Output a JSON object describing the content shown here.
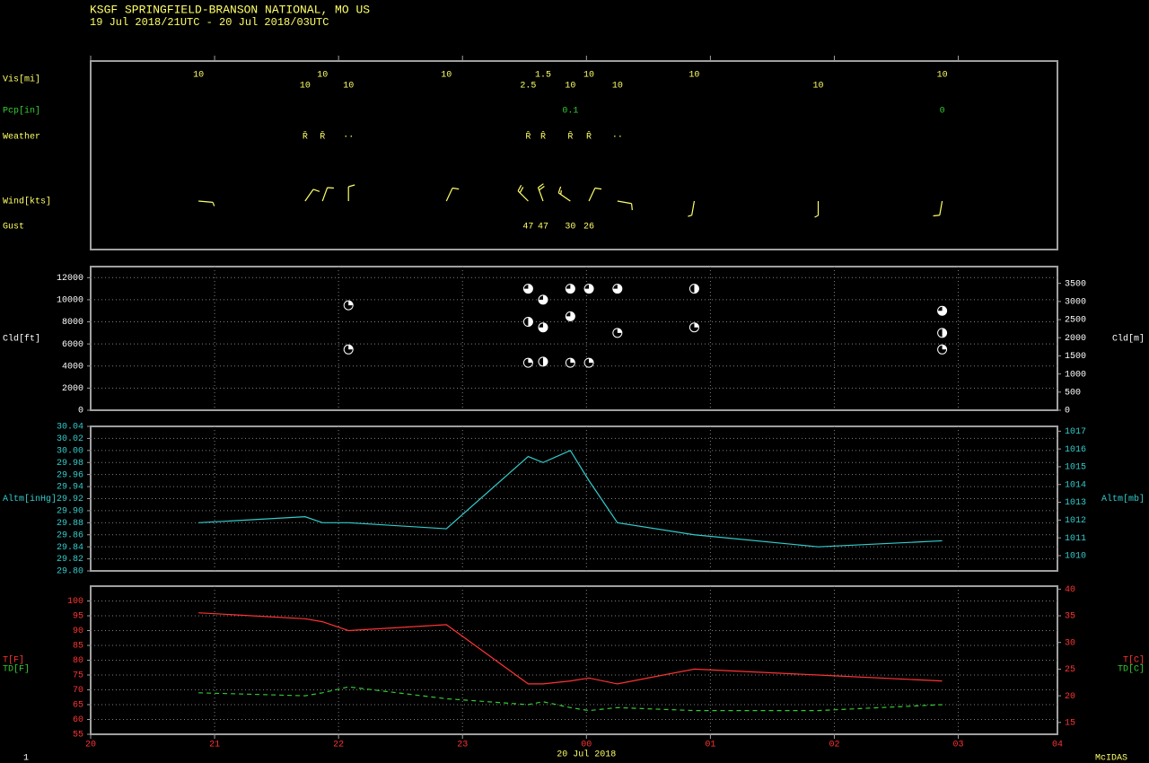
{
  "title": "KSGF  SPRINGFIELD-BRANSON NATIONAL, MO US",
  "subtitle": "19 Jul 2018/21UTC - 20 Jul 2018/03UTC",
  "page_number": "1",
  "software": "McIDAS",
  "chart_data": [
    {
      "type": "station-plot",
      "row_labels": [
        "Vis[mi]",
        "Pcp[in]",
        "Weather",
        "Wind[kts]",
        "Gust"
      ],
      "x": [
        0.87,
        1.73,
        1.87,
        2.08,
        2.87,
        3.53,
        3.65,
        3.87,
        4.02,
        4.25,
        4.87,
        5.87,
        6.87
      ],
      "visibility": [
        10,
        10,
        10,
        10,
        10,
        2.5,
        1.5,
        10,
        10,
        10,
        10,
        10,
        10
      ],
      "precipitation": [
        null,
        null,
        null,
        null,
        null,
        null,
        null,
        0.1,
        null,
        null,
        null,
        null,
        0
      ],
      "weather": [
        null,
        "Ř",
        "Ř",
        "··",
        null,
        "Ȓ",
        "Ȓ",
        "Ȓ",
        "Ȓ",
        "··",
        null,
        null,
        null
      ],
      "wind_direction": [
        95,
        35,
        20,
        0,
        25,
        315,
        340,
        305,
        25,
        100,
        190,
        180,
        190
      ],
      "wind_speed": [
        5,
        10,
        10,
        10,
        10,
        20,
        20,
        15,
        10,
        10,
        5,
        5,
        10
      ],
      "gust": [
        null,
        null,
        null,
        null,
        null,
        47,
        47,
        30,
        26,
        null,
        null,
        null,
        null
      ],
      "color": "#ffff66"
    },
    {
      "type": "scatter",
      "ylabel": "Cld[ft]",
      "y2label": "Cld[m]",
      "x": [
        2.08,
        2.08,
        3.53,
        3.53,
        3.53,
        3.65,
        3.65,
        3.65,
        3.87,
        3.87,
        3.87,
        4.02,
        4.02,
        4.25,
        4.25,
        4.87,
        4.87,
        6.87,
        6.87,
        6.87
      ],
      "y": [
        9500,
        5500,
        11000,
        8000,
        4300,
        10000,
        7500,
        4400,
        11000,
        8500,
        4300,
        11000,
        4300,
        11000,
        7000,
        11000,
        7500,
        9000,
        7000,
        5500
      ],
      "cover": [
        0.25,
        0.25,
        0.75,
        0.5,
        0.25,
        0.75,
        0.75,
        0.5,
        0.75,
        0.75,
        0.25,
        0.75,
        0.25,
        0.75,
        0.25,
        0.5,
        0.25,
        0.75,
        0.5,
        0.25
      ],
      "ylim": [
        0,
        13000
      ],
      "yticks": [
        0,
        2000,
        4000,
        6000,
        8000,
        10000,
        12000
      ],
      "y2lim": [
        0,
        3962.4
      ],
      "y2ticks": [
        0,
        500,
        1000,
        1500,
        2000,
        2500,
        3000,
        3500
      ],
      "color": "#ffffff",
      "axis_color": "#ffffff",
      "grid": true
    },
    {
      "type": "line",
      "ylabel": "Altm[inHg]",
      "y2label": "Altm[mb]",
      "x": [
        0.87,
        1.73,
        1.87,
        2.08,
        2.87,
        3.53,
        3.65,
        3.87,
        4.02,
        4.25,
        4.87,
        5.87,
        6.87
      ],
      "series": [
        {
          "color": "#33cccc",
          "values": [
            29.88,
            29.89,
            29.88,
            29.88,
            29.87,
            29.99,
            29.98,
            30.0,
            29.95,
            29.88,
            29.86,
            29.84,
            29.85
          ]
        }
      ],
      "ylim": [
        29.8,
        30.04
      ],
      "yticks": [
        {
          "value": 29.8,
          "label": "29.80"
        },
        29.82,
        29.84,
        29.86,
        29.88,
        {
          "value": 29.9,
          "label": "29.90"
        },
        29.92,
        29.94,
        29.96,
        29.98,
        {
          "value": 30.0,
          "label": "30.00"
        },
        30.02,
        30.04
      ],
      "y2lim": [
        1009.14,
        1017.27
      ],
      "y2ticks": [
        1010,
        1011,
        1012,
        1013,
        1014,
        1015,
        1016,
        1017
      ],
      "axis_color": "#33cccc",
      "grid": true
    },
    {
      "type": "line",
      "x": [
        0.87,
        1.73,
        1.87,
        2.08,
        2.87,
        3.53,
        3.65,
        3.87,
        4.02,
        4.25,
        4.87,
        5.87,
        6.87
      ],
      "series": [
        {
          "name": "T[F]",
          "color": "#ff3333",
          "dashed": false,
          "values": [
            96,
            94,
            93,
            90,
            92,
            72,
            72,
            73,
            74,
            72,
            77,
            75,
            73
          ]
        },
        {
          "name": "TD[F]",
          "color": "#33cc33",
          "dashed": true,
          "values": [
            69,
            68,
            69,
            71,
            67,
            65,
            66,
            64,
            63,
            64,
            63,
            63,
            65
          ]
        }
      ],
      "y2labels": [
        "T[C]",
        "TD[C]"
      ],
      "ylim": [
        55,
        105
      ],
      "yticks": [
        55,
        60,
        65,
        70,
        75,
        80,
        85,
        90,
        95,
        100
      ],
      "y2lim": [
        12.78,
        40.56
      ],
      "y2ticks": [
        15,
        20,
        25,
        30,
        35,
        40
      ],
      "xlim": [
        0,
        7.8
      ],
      "xticks": [
        {
          "value": 0,
          "label": "20"
        },
        {
          "value": 1,
          "label": "21"
        },
        {
          "value": 2,
          "label": "22"
        },
        {
          "value": 3,
          "label": "23"
        },
        {
          "value": 4,
          "label": "00"
        },
        {
          "value": 5,
          "label": "01"
        },
        {
          "value": 6,
          "label": "02"
        },
        {
          "value": 7,
          "label": "03"
        }
      ],
      "x_end_label": "04",
      "x_date_label": "20 Jul 2018",
      "axis_color": "#ff3333",
      "grid": true
    }
  ]
}
